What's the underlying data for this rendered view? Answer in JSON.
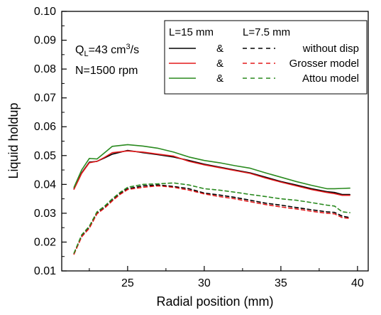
{
  "chart_data": {
    "type": "line",
    "xlabel": "Radial position (mm)",
    "ylabel": "Liquid holdup",
    "xlim": [
      20.7,
      40.7
    ],
    "ylim": [
      0.01,
      0.1
    ],
    "xticks": [
      25,
      30,
      35,
      40
    ],
    "xtick_labels": [
      "25",
      "30",
      "35",
      "40"
    ],
    "yticks": [
      0.01,
      0.02,
      0.03,
      0.04,
      0.05,
      0.06,
      0.07,
      0.08,
      0.09,
      0.1
    ],
    "ytick_labels": [
      "0.01",
      "0.02",
      "0.03",
      "0.04",
      "0.05",
      "0.06",
      "0.07",
      "0.08",
      "0.09",
      "0.10"
    ],
    "grid": false,
    "legend_position": "top-right",
    "annotations": {
      "flow_prefix": "Q",
      "flow_sub": "L",
      "flow_value": "=43 cm",
      "flow_sup": "3",
      "flow_unit": "/s",
      "speed": "N=1500 rpm"
    },
    "legend": {
      "header_left": "L=15 mm",
      "header_right": "L=7.5 mm",
      "amp": "&",
      "rows": [
        {
          "label": "without disp",
          "color": "#000000"
        },
        {
          "label": "Grosser model",
          "color": "#e31a1c"
        },
        {
          "label": "Attou model",
          "color": "#2a8a1f"
        }
      ]
    },
    "series": [
      {
        "group": "L=15 mm",
        "label": "without disp",
        "color": "#000000",
        "dash": "solid",
        "x": [
          21.5,
          22.0,
          22.5,
          23.0,
          23.5,
          24.0,
          25.0,
          26.0,
          27.0,
          28.0,
          29.0,
          30.0,
          31.0,
          32.0,
          33.0,
          34.0,
          35.0,
          36.0,
          37.0,
          38.0,
          38.5,
          39.0,
          39.5
        ],
        "y": [
          0.0385,
          0.044,
          0.0477,
          0.048,
          0.0492,
          0.0505,
          0.0518,
          0.051,
          0.0503,
          0.0495,
          0.0483,
          0.047,
          0.046,
          0.045,
          0.044,
          0.0425,
          0.041,
          0.0398,
          0.0385,
          0.0375,
          0.0372,
          0.0365,
          0.0365
        ]
      },
      {
        "group": "L=15 mm",
        "label": "Grosser model",
        "color": "#e31a1c",
        "dash": "solid",
        "x": [
          21.5,
          22.0,
          22.5,
          23.0,
          23.5,
          24.0,
          25.0,
          26.0,
          27.0,
          28.0,
          29.0,
          30.0,
          31.0,
          32.0,
          33.0,
          34.0,
          35.0,
          36.0,
          37.0,
          38.0,
          38.5,
          39.0,
          39.5
        ],
        "y": [
          0.0383,
          0.0438,
          0.0475,
          0.048,
          0.0494,
          0.051,
          0.0516,
          0.0512,
          0.0505,
          0.0498,
          0.048,
          0.0468,
          0.0458,
          0.0448,
          0.0438,
          0.0422,
          0.0408,
          0.0395,
          0.0382,
          0.0372,
          0.0368,
          0.0362,
          0.0362
        ]
      },
      {
        "group": "L=15 mm",
        "label": "Attou model",
        "color": "#2a8a1f",
        "dash": "solid",
        "x": [
          21.5,
          22.0,
          22.5,
          23.0,
          23.5,
          24.0,
          25.0,
          26.0,
          27.0,
          28.0,
          29.0,
          30.0,
          31.0,
          32.0,
          33.0,
          34.0,
          35.0,
          36.0,
          37.0,
          38.0,
          38.5,
          39.0,
          39.5
        ],
        "y": [
          0.039,
          0.045,
          0.049,
          0.0488,
          0.051,
          0.0532,
          0.0538,
          0.0533,
          0.0525,
          0.0512,
          0.0495,
          0.0483,
          0.0475,
          0.0465,
          0.0456,
          0.044,
          0.0425,
          0.041,
          0.0397,
          0.0385,
          0.0385,
          0.0386,
          0.0387
        ]
      },
      {
        "group": "L=7.5 mm",
        "label": "without disp",
        "color": "#000000",
        "dash": "dashed",
        "x": [
          21.5,
          22.0,
          22.5,
          23.0,
          23.5,
          24.0,
          24.5,
          25.0,
          26.0,
          27.0,
          28.0,
          29.0,
          30.0,
          31.0,
          32.0,
          33.0,
          34.0,
          35.0,
          36.0,
          37.0,
          38.0,
          38.5,
          39.0,
          39.5
        ],
        "y": [
          0.016,
          0.022,
          0.025,
          0.03,
          0.032,
          0.0345,
          0.0368,
          0.0385,
          0.0395,
          0.0398,
          0.0393,
          0.0385,
          0.037,
          0.0363,
          0.0355,
          0.0345,
          0.0335,
          0.0328,
          0.032,
          0.0312,
          0.0305,
          0.0303,
          0.029,
          0.0285
        ]
      },
      {
        "group": "L=7.5 mm",
        "label": "Grosser model",
        "color": "#e31a1c",
        "dash": "dashed",
        "x": [
          21.5,
          22.0,
          22.5,
          23.0,
          23.5,
          24.0,
          24.5,
          25.0,
          26.0,
          27.0,
          28.0,
          29.0,
          30.0,
          31.0,
          32.0,
          33.0,
          34.0,
          35.0,
          36.0,
          37.0,
          38.0,
          38.5,
          39.0,
          39.5
        ],
        "y": [
          0.0158,
          0.0218,
          0.0248,
          0.0298,
          0.0318,
          0.0343,
          0.0365,
          0.0382,
          0.039,
          0.0395,
          0.039,
          0.038,
          0.0367,
          0.0358,
          0.035,
          0.034,
          0.033,
          0.0322,
          0.0315,
          0.0307,
          0.03,
          0.0298,
          0.0285,
          0.0282
        ]
      },
      {
        "group": "L=7.5 mm",
        "label": "Attou model",
        "color": "#2a8a1f",
        "dash": "dashed",
        "x": [
          21.5,
          22.0,
          22.5,
          23.0,
          23.5,
          24.0,
          24.5,
          25.0,
          26.0,
          27.0,
          28.0,
          29.0,
          30.0,
          31.0,
          32.0,
          33.0,
          34.0,
          35.0,
          36.0,
          37.0,
          38.0,
          38.5,
          39.0,
          39.5
        ],
        "y": [
          0.0162,
          0.0225,
          0.0255,
          0.0305,
          0.0325,
          0.035,
          0.0372,
          0.039,
          0.04,
          0.0402,
          0.0405,
          0.0398,
          0.0385,
          0.038,
          0.0373,
          0.0365,
          0.0358,
          0.035,
          0.0345,
          0.0337,
          0.0328,
          0.0325,
          0.0305,
          0.0302
        ]
      }
    ]
  }
}
